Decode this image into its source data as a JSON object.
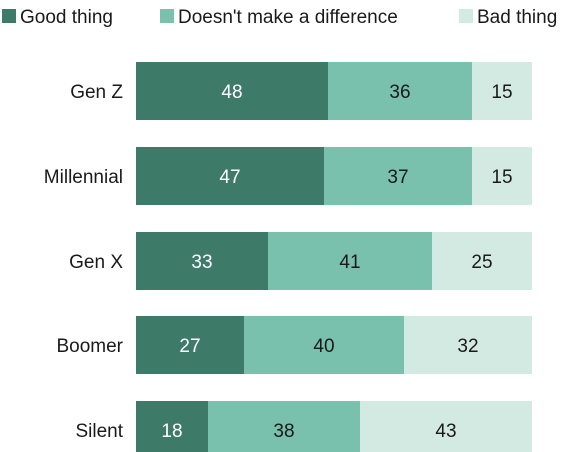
{
  "chart_data": {
    "type": "bar",
    "orientation": "horizontal",
    "stacked": true,
    "categories": [
      "Gen Z",
      "Millennial",
      "Gen X",
      "Boomer",
      "Silent"
    ],
    "series": [
      {
        "name": "Good thing",
        "values": [
          48,
          47,
          33,
          27,
          18
        ],
        "color": "#3d7a68",
        "label_color": "#ffffff"
      },
      {
        "name": "Doesn't make a difference",
        "values": [
          36,
          37,
          41,
          40,
          38
        ],
        "color": "#79c0ad",
        "label_color": "#1a1a1a"
      },
      {
        "name": "Bad thing",
        "values": [
          15,
          15,
          25,
          32,
          43
        ],
        "color": "#d3eae3",
        "label_color": "#1a1a1a"
      }
    ],
    "xlim": [
      0,
      100
    ],
    "legend_position": "top",
    "grid": false,
    "title": "",
    "xlabel": "",
    "ylabel": ""
  }
}
